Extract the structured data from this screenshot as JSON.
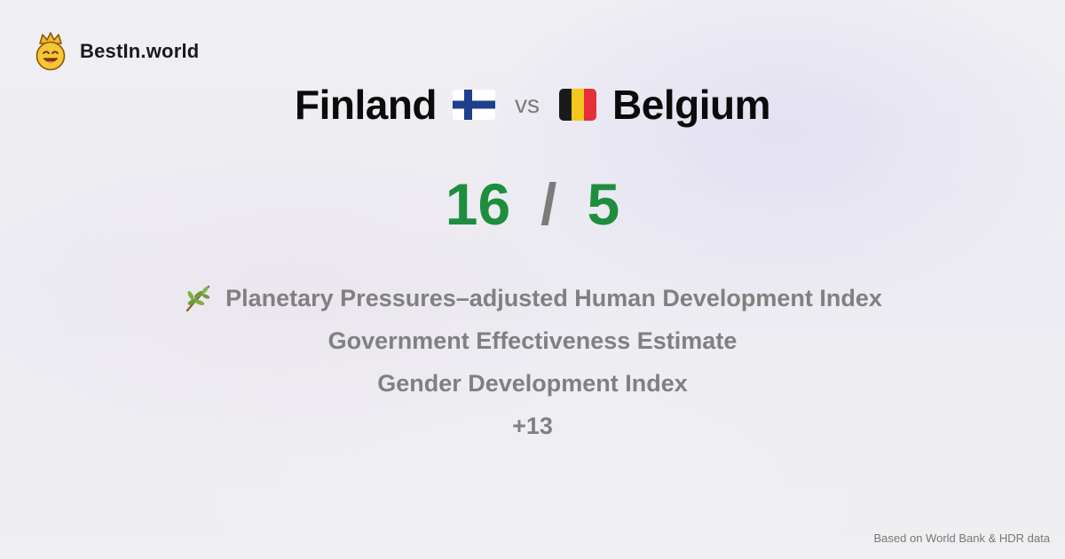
{
  "brand": {
    "name": "BestIn.world",
    "logo_icon": "crown-smiley-icon"
  },
  "comparison": {
    "left_country": "Finland",
    "left_flag_icon": "finland-flag-icon",
    "vs_label": "vs",
    "right_country": "Belgium",
    "right_flag_icon": "belgium-flag-icon"
  },
  "score": {
    "left": "16",
    "separator": "/",
    "right": "5",
    "color": "#1e8e3e"
  },
  "metrics": [
    {
      "label": "Planetary Pressures–adjusted Human Development Index",
      "icon": "olive-branch-icon"
    },
    {
      "label": "Government Effectiveness Estimate"
    },
    {
      "label": "Gender Development Index"
    },
    {
      "label": "+13"
    }
  ],
  "footer": {
    "source": "Based on World Bank & HDR data"
  }
}
